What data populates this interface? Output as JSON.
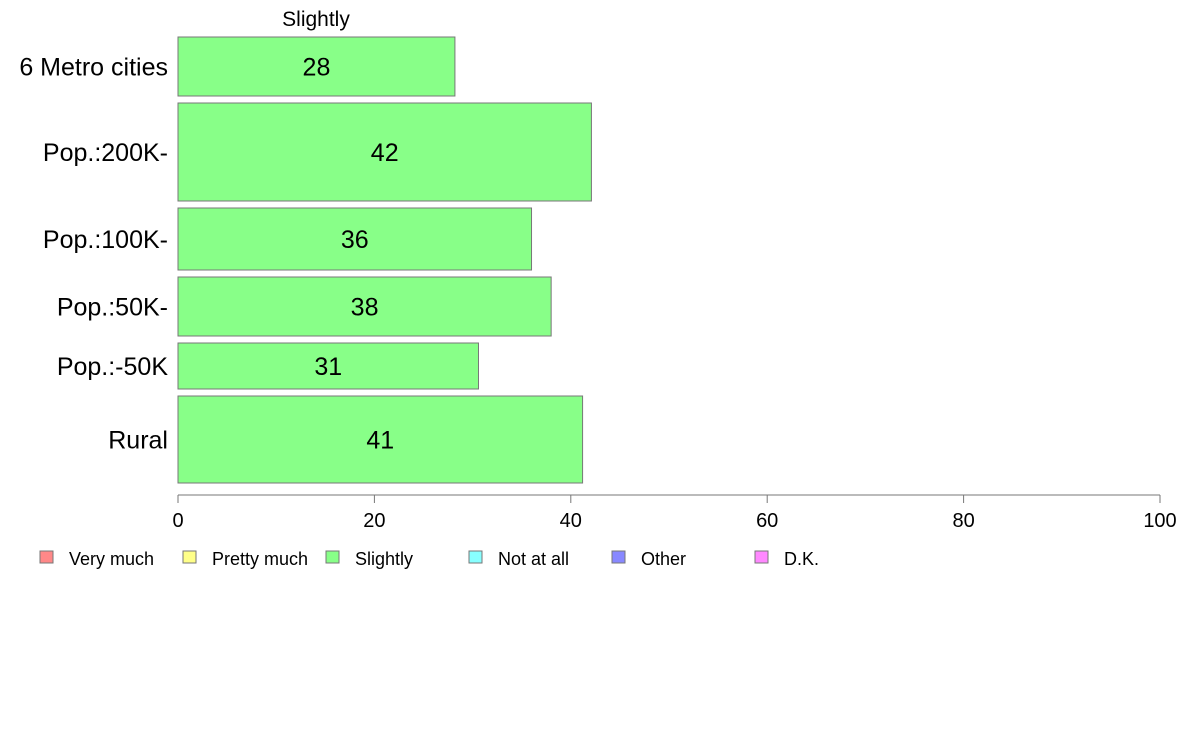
{
  "chart_data": {
    "type": "bar",
    "orientation": "horizontal",
    "series_title": "Slightly",
    "categories": [
      "6 Metro cities",
      "Pop.:200K-",
      "Pop.:100K-",
      "Pop.:50K-",
      "Pop.:-50K",
      "Rural"
    ],
    "series": [
      {
        "name": "Slightly",
        "values": [
          28.2,
          42.1,
          36,
          38,
          30.6,
          41.2
        ],
        "color": "#88ff88"
      }
    ],
    "bar_labels": [
      "28",
      "42",
      "36",
      "38",
      "31",
      "41"
    ],
    "xlim": [
      0,
      100
    ],
    "xticks": [
      0,
      20,
      40,
      60,
      80,
      100
    ],
    "legend": [
      {
        "label": "Very much",
        "color": "#ff8888"
      },
      {
        "label": "Pretty much",
        "color": "#ffff88"
      },
      {
        "label": "Slightly",
        "color": "#88ff88"
      },
      {
        "label": "Not at all",
        "color": "#88ffff"
      },
      {
        "label": "Other",
        "color": "#8888ff"
      },
      {
        "label": "D.K.",
        "color": "#ff88ff"
      }
    ],
    "legend_position": "bottom",
    "grid": false
  }
}
